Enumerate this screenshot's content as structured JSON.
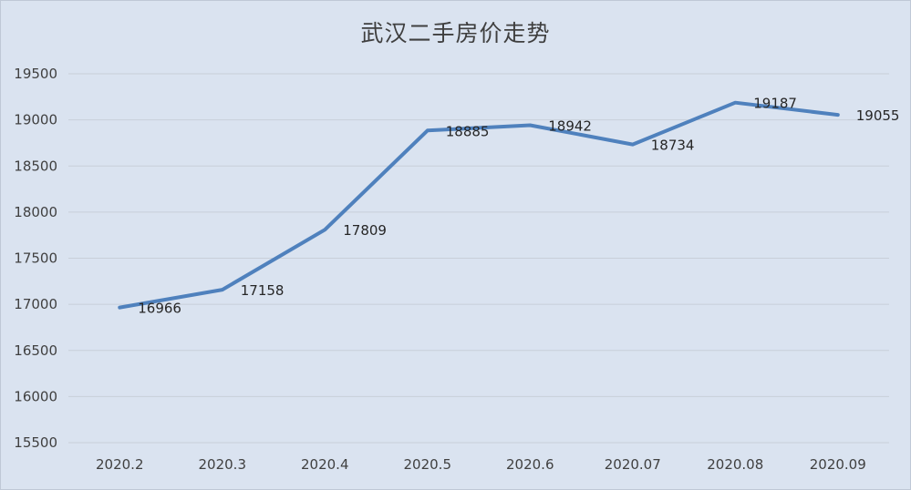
{
  "chart_data": {
    "type": "line",
    "title": "武汉二手房价走势",
    "xlabel": "",
    "ylabel": "",
    "categories": [
      "2020.2",
      "2020.3",
      "2020.4",
      "2020.5",
      "2020.6",
      "2020.07",
      "2020.08",
      "2020.09"
    ],
    "series": [
      {
        "values": [
          16966,
          17158,
          17809,
          18885,
          18942,
          18734,
          19187,
          19055
        ]
      }
    ],
    "ylim": [
      15500,
      19500
    ],
    "yticks": [
      15500,
      16000,
      16500,
      17000,
      17500,
      18000,
      18500,
      19000,
      19500
    ],
    "grid": true,
    "legend": "none",
    "colors": {
      "background": "#dae3f0",
      "line": "#4f81bd",
      "grid": "#c8cfd9",
      "text": "#404040"
    }
  }
}
